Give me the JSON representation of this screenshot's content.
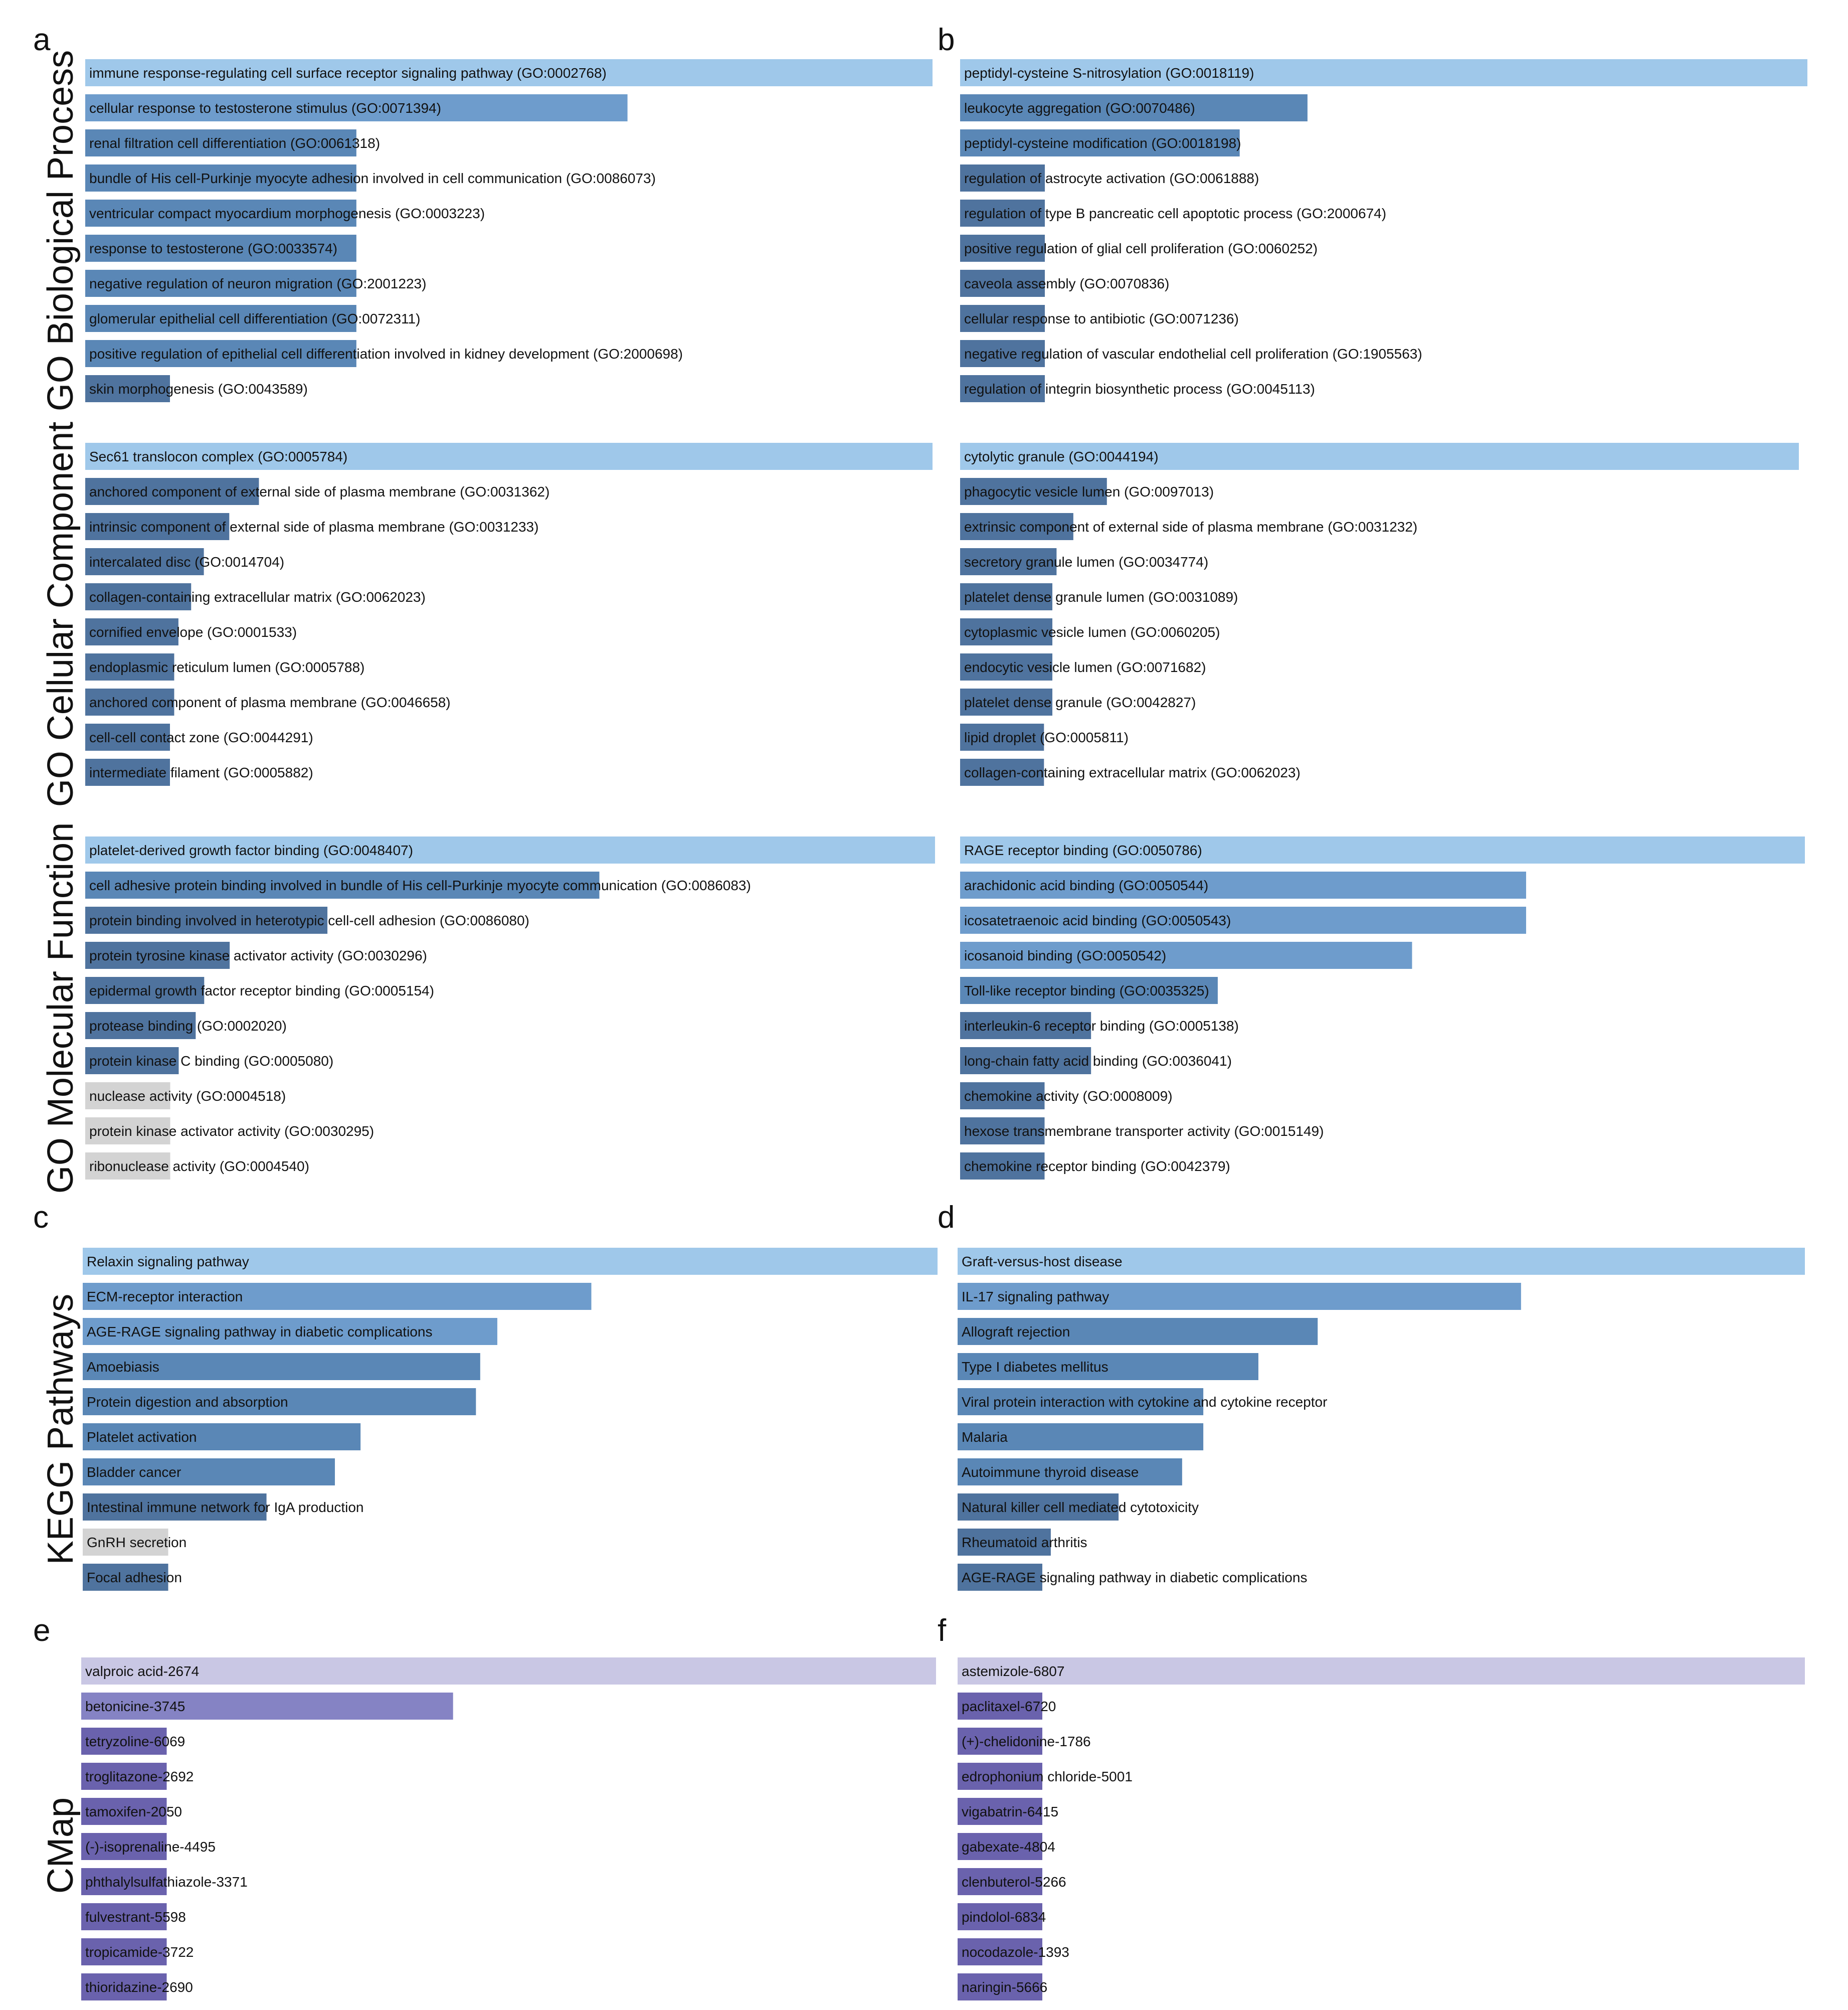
{
  "section_titles": [
    "GO Biological Process",
    "GO Cellular Component",
    "GO Molecular Function",
    "KEGG Pathways",
    "CMap"
  ],
  "panel_letters": [
    "a",
    "b",
    "c",
    "d",
    "e",
    "f"
  ],
  "colors": {
    "top": "#9fc8ea",
    "blue_high": "#6e9ccc",
    "blue_mid": "#5a87b6",
    "blue_low": "#4f739e",
    "gray": "#d3d3d3",
    "purple_top": "#c9c7e4",
    "purple_high": "#8583c4",
    "purple_low": "#6a62ad"
  },
  "chart_data": [
    {
      "id": "a-bp",
      "type": "bar",
      "orientation": "horizontal",
      "panel": "a",
      "section": "GO Biological Process",
      "categories": [
        "immune response-regulating cell surface receptor signaling pathway (GO:0002768)",
        "cellular response to testosterone stimulus (GO:0071394)",
        "renal filtration cell differentiation (GO:0061318)",
        "bundle of His cell-Purkinje myocyte adhesion involved in cell communication (GO:0086073)",
        "ventricular compact myocardium morphogenesis (GO:0003223)",
        "response to testosterone (GO:0033574)",
        "negative regulation of neuron migration (GO:2001223)",
        "glomerular epithelial cell differentiation (GO:0072311)",
        "positive regulation of epithelial cell differentiation involved in kidney development (GO:2000698)",
        "skin morphogenesis (GO:0043589)"
      ],
      "values": [
        100,
        64,
        32,
        32,
        32,
        32,
        32,
        32,
        32,
        10
      ],
      "color_keys": [
        "top",
        "blue_high",
        "blue_mid",
        "blue_mid",
        "blue_mid",
        "blue_mid",
        "blue_mid",
        "blue_mid",
        "blue_mid",
        "blue_low"
      ]
    },
    {
      "id": "b-bp",
      "type": "bar",
      "orientation": "horizontal",
      "panel": "b",
      "section": "GO Biological Process",
      "categories": [
        "peptidyl-cysteine S-nitrosylation (GO:0018119)",
        "leukocyte aggregation (GO:0070486)",
        "peptidyl-cysteine modification (GO:0018198)",
        "regulation of astrocyte activation (GO:0061888)",
        "regulation of type B pancreatic cell apoptotic process (GO:2000674)",
        "positive regulation of glial cell proliferation (GO:0060252)",
        "caveola assembly (GO:0070836)",
        "cellular response to antibiotic (GO:0071236)",
        "negative regulation of vascular endothelial cell proliferation (GO:1905563)",
        "regulation of integrin biosynthetic process (GO:0045113)"
      ],
      "values": [
        100,
        41,
        33,
        10,
        10,
        10,
        10,
        10,
        10,
        10
      ],
      "color_keys": [
        "top",
        "blue_mid",
        "blue_mid",
        "blue_low",
        "blue_low",
        "blue_low",
        "blue_low",
        "blue_low",
        "blue_low",
        "blue_low"
      ]
    },
    {
      "id": "a-cc",
      "type": "bar",
      "orientation": "horizontal",
      "panel": "a",
      "section": "GO Cellular Component",
      "categories": [
        "Sec61 translocon complex (GO:0005784)",
        "anchored component of external side of plasma membrane (GO:0031362)",
        "intrinsic component of external side of plasma membrane (GO:0031233)",
        "intercalated disc (GO:0014704)",
        "collagen-containing extracellular matrix (GO:0062023)",
        "cornified envelope (GO:0001533)",
        "endoplasmic reticulum lumen (GO:0005788)",
        "anchored component of plasma membrane (GO:0046658)",
        "cell-cell contact zone (GO:0044291)",
        "intermediate filament (GO:0005882)"
      ],
      "values": [
        100,
        20.5,
        17,
        14,
        12.5,
        11,
        10.5,
        10.5,
        10,
        10
      ],
      "color_keys": [
        "top",
        "blue_low",
        "blue_low",
        "blue_low",
        "blue_low",
        "blue_low",
        "blue_low",
        "blue_low",
        "blue_low",
        "blue_low"
      ]
    },
    {
      "id": "b-cc",
      "type": "bar",
      "orientation": "horizontal",
      "panel": "b",
      "section": "GO Cellular Component",
      "categories": [
        "cytolytic granule (GO:0044194)",
        "phagocytic vesicle lumen (GO:0097013)",
        "extrinsic component of external side of plasma membrane (GO:0031232)",
        "secretory granule lumen (GO:0034774)",
        "platelet dense granule lumen (GO:0031089)",
        "cytoplasmic vesicle lumen (GO:0060205)",
        "endocytic vesicle lumen (GO:0071682)",
        "platelet dense granule (GO:0042827)",
        "lipid droplet (GO:0005811)",
        "collagen-containing extracellular matrix (GO:0062023)"
      ],
      "values": [
        100,
        17.5,
        13.5,
        11.5,
        11,
        11,
        11,
        11,
        10,
        10
      ],
      "color_keys": [
        "top",
        "blue_low",
        "blue_low",
        "blue_low",
        "blue_low",
        "blue_low",
        "blue_low",
        "blue_low",
        "blue_low",
        "blue_low"
      ]
    },
    {
      "id": "a-mf",
      "type": "bar",
      "orientation": "horizontal",
      "panel": "a",
      "section": "GO Molecular Function",
      "categories": [
        "platelet-derived growth factor binding (GO:0048407)",
        "cell adhesive protein binding involved in bundle of His cell-Purkinje myocyte communication (GO:0086083)",
        "protein binding involved in heterotypic cell-cell adhesion (GO:0086080)",
        "protein tyrosine kinase activator activity (GO:0030296)",
        "epidermal growth factor receptor binding (GO:0005154)",
        "protease binding (GO:0002020)",
        "protein kinase C binding (GO:0005080)",
        "nuclease activity (GO:0004518)",
        "protein kinase activator activity (GO:0030295)",
        "ribonuclease activity (GO:0004540)"
      ],
      "values": [
        100,
        60.5,
        28.5,
        17,
        14,
        13,
        11,
        10,
        10,
        10
      ],
      "color_keys": [
        "top",
        "blue_mid",
        "blue_low",
        "blue_low",
        "blue_low",
        "blue_low",
        "blue_low",
        "gray",
        "gray",
        "gray"
      ]
    },
    {
      "id": "b-mf",
      "type": "bar",
      "orientation": "horizontal",
      "panel": "b",
      "section": "GO Molecular Function",
      "categories": [
        "RAGE receptor binding (GO:0050786)",
        "arachidonic acid binding (GO:0050544)",
        "icosatetraenoic acid binding (GO:0050543)",
        "icosanoid binding (GO:0050542)",
        "Toll-like receptor binding (GO:0035325)",
        "interleukin-6 receptor binding (GO:0005138)",
        "long-chain fatty acid binding (GO:0036041)",
        "chemokine activity (GO:0008009)",
        "hexose transmembrane transporter activity (GO:0015149)",
        "chemokine receptor binding (GO:0042379)"
      ],
      "values": [
        100,
        67,
        67,
        53.5,
        30.5,
        15.5,
        15.5,
        10,
        10,
        10
      ],
      "color_keys": [
        "top",
        "blue_high",
        "blue_high",
        "blue_high",
        "blue_mid",
        "blue_low",
        "blue_low",
        "blue_low",
        "blue_low",
        "blue_low"
      ]
    },
    {
      "id": "c-kegg",
      "type": "bar",
      "orientation": "horizontal",
      "panel": "c",
      "section": "KEGG Pathways",
      "categories": [
        "Relaxin signaling pathway",
        "ECM-receptor interaction",
        "AGE-RAGE signaling pathway in diabetic complications",
        "Amoebiasis",
        "Protein digestion and absorption",
        "Platelet activation",
        "Bladder cancer",
        "Intestinal immune network for IgA production",
        "GnRH secretion",
        "Focal adhesion"
      ],
      "values": [
        100,
        59.5,
        48.5,
        46.5,
        46,
        32.5,
        29.5,
        21.5,
        10,
        10
      ],
      "color_keys": [
        "top",
        "blue_high",
        "blue_high",
        "blue_mid",
        "blue_mid",
        "blue_mid",
        "blue_mid",
        "blue_low",
        "gray",
        "blue_low"
      ]
    },
    {
      "id": "d-kegg",
      "type": "bar",
      "orientation": "horizontal",
      "panel": "d",
      "section": "KEGG Pathways",
      "categories": [
        "Graft-versus-host disease",
        "IL-17 signaling pathway",
        "Allograft rejection",
        "Type I diabetes mellitus",
        "Viral protein interaction with cytokine and cytokine receptor",
        "Malaria",
        "Autoimmune thyroid disease",
        "Natural killer cell mediated cytotoxicity",
        "Rheumatoid arthritis",
        "AGE-RAGE signaling pathway in diabetic complications"
      ],
      "values": [
        100,
        66.5,
        42.5,
        35.5,
        29,
        29,
        26.5,
        19,
        11,
        10
      ],
      "color_keys": [
        "top",
        "blue_high",
        "blue_mid",
        "blue_mid",
        "blue_mid",
        "blue_mid",
        "blue_mid",
        "blue_low",
        "blue_low",
        "blue_low"
      ]
    },
    {
      "id": "e-cmap",
      "type": "bar",
      "orientation": "horizontal",
      "panel": "e",
      "section": "CMap",
      "categories": [
        "valproic acid-2674",
        "betonicine-3745",
        "tetryzoline-6069",
        "troglitazone-2692",
        "tamoxifen-2050",
        "(-)-isoprenaline-4495",
        "phthalylsulfathiazole-3371",
        "fulvestrant-5598",
        "tropicamide-3722",
        "thioridazine-2690"
      ],
      "values": [
        100,
        43.5,
        10,
        10,
        10,
        10,
        10,
        10,
        10,
        10
      ],
      "color_keys": [
        "purple_top",
        "purple_high",
        "purple_low",
        "purple_low",
        "purple_low",
        "purple_low",
        "purple_low",
        "purple_low",
        "purple_low",
        "purple_low"
      ]
    },
    {
      "id": "f-cmap",
      "type": "bar",
      "orientation": "horizontal",
      "panel": "f",
      "section": "CMap",
      "categories": [
        "astemizole-6807",
        "paclitaxel-6720",
        "(+)-chelidonine-1786",
        "edrophonium chloride-5001",
        "vigabatrin-6415",
        "gabexate-4804",
        "clenbuterol-5266",
        "pindolol-6834",
        "nocodazole-1393",
        "naringin-5666"
      ],
      "values": [
        100,
        10,
        10,
        10,
        10,
        10,
        10,
        10,
        10,
        10
      ],
      "color_keys": [
        "purple_top",
        "purple_low",
        "purple_low",
        "purple_low",
        "purple_low",
        "purple_low",
        "purple_low",
        "purple_low",
        "purple_low",
        "purple_low"
      ]
    }
  ]
}
